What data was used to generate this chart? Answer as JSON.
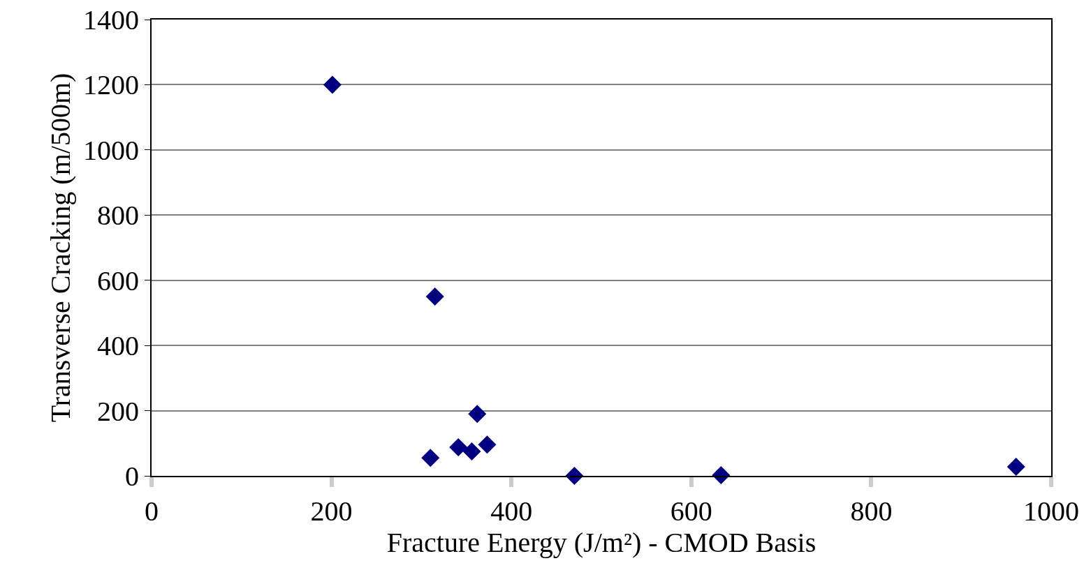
{
  "chart_data": {
    "type": "scatter",
    "xlabel": "Fracture Energy (J/m²) - CMOD Basis",
    "ylabel": "Transverse Cracking (m/500m)",
    "x": [
      201,
      315,
      310,
      362,
      341,
      356,
      373,
      470,
      633,
      961
    ],
    "values": [
      1200,
      550,
      55,
      190,
      88,
      75,
      96,
      0,
      2,
      28
    ],
    "color": "#000080",
    "marker": "diamond",
    "xlim": [
      0,
      1000
    ],
    "xticks": [
      0,
      200,
      400,
      600,
      800,
      1000
    ],
    "ylim": [
      0,
      1400
    ],
    "yticks": [
      0,
      200,
      400,
      600,
      800,
      1000,
      1200,
      1400
    ],
    "grid": "y"
  }
}
